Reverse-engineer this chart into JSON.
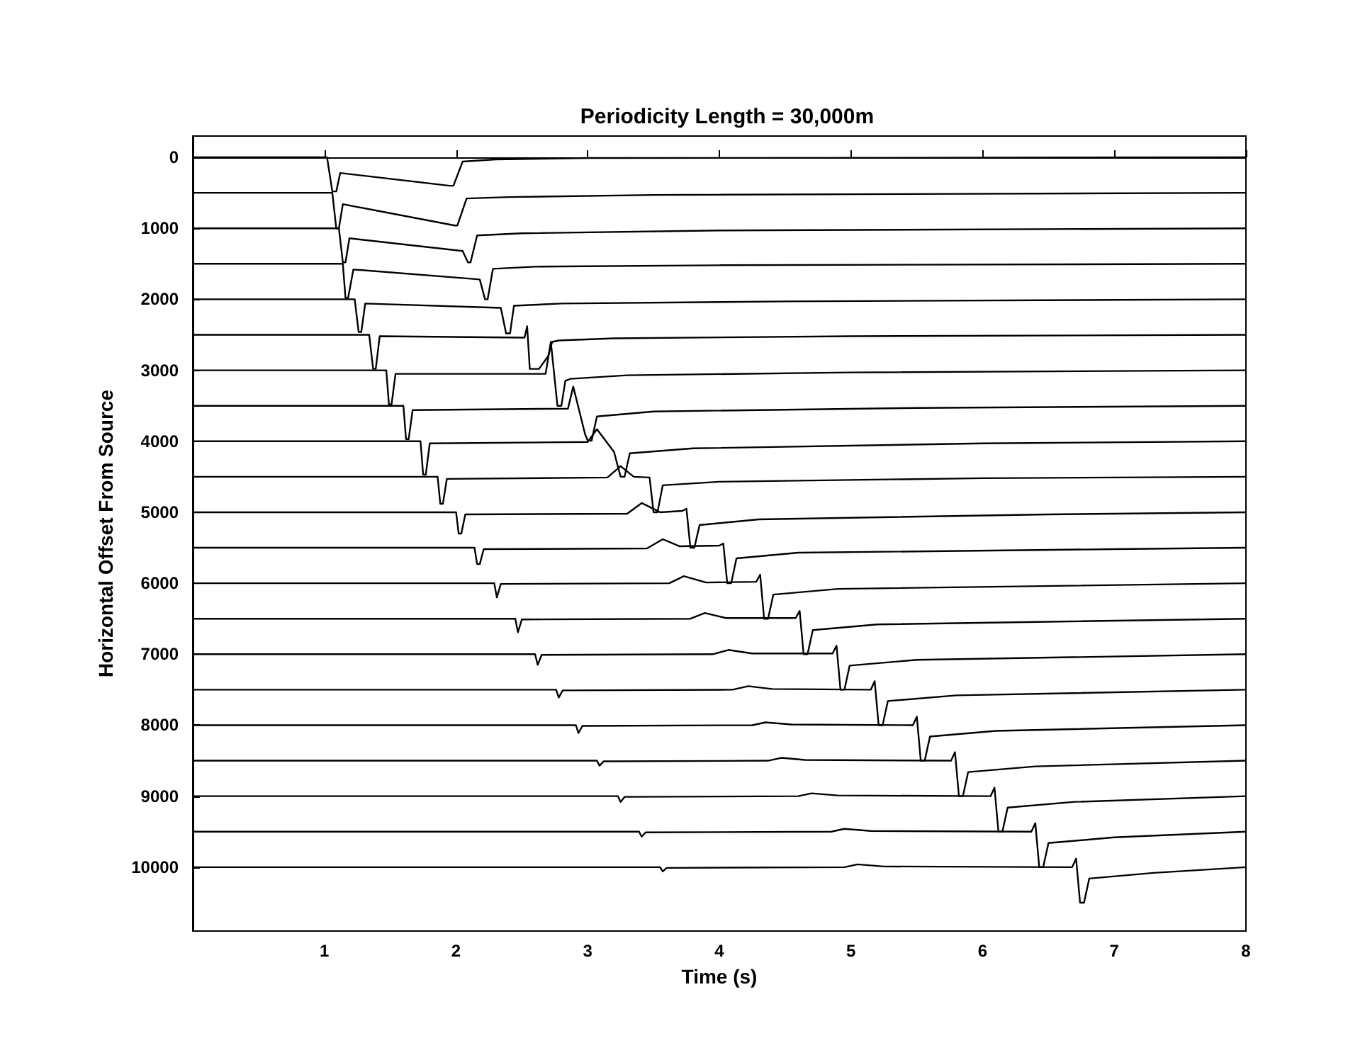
{
  "chart_data": {
    "type": "line",
    "title": "Periodicity Length = 30,000m",
    "xlabel": "Time (s)",
    "ylabel": "Horizontal Offset From Source",
    "xlim": [
      0,
      8
    ],
    "xticks": [
      1,
      2,
      3,
      4,
      5,
      6,
      7,
      8
    ],
    "ylim": [
      10900,
      -300
    ],
    "yticks": [
      0,
      1000,
      2000,
      3000,
      4000,
      5000,
      6000,
      7000,
      8000,
      9000,
      10000
    ],
    "series": [
      {
        "color": "#000000",
        "x": [
          0,
          1.02,
          1.06,
          1.09,
          1.12,
          1.95,
          1.98,
          2.05,
          2.3,
          3,
          8
        ],
        "values": [
          0,
          0,
          480,
          480,
          220,
          400,
          400,
          60,
          30,
          10,
          0
        ]
      },
      {
        "color": "#000000",
        "x": [
          0,
          1.06,
          1.09,
          1.11,
          1.14,
          1.99,
          2.01,
          2.08,
          2.4,
          3.5,
          8
        ],
        "values": [
          500,
          500,
          1000,
          1000,
          660,
          960,
          960,
          580,
          560,
          530,
          500
        ]
      },
      {
        "color": "#000000",
        "x": [
          0,
          1.11,
          1.14,
          1.16,
          1.19,
          2.05,
          2.09,
          2.11,
          2.16,
          2.5,
          4,
          8
        ],
        "values": [
          1000,
          1000,
          1480,
          1480,
          1140,
          1320,
          1480,
          1480,
          1100,
          1070,
          1030,
          1000
        ]
      },
      {
        "color": "#000000",
        "x": [
          0,
          1.14,
          1.16,
          1.18,
          1.22,
          2.18,
          2.22,
          2.24,
          2.28,
          2.6,
          4,
          8
        ],
        "values": [
          1500,
          1500,
          1980,
          1980,
          1580,
          1720,
          2000,
          2000,
          1570,
          1540,
          1520,
          1500
        ]
      },
      {
        "color": "#000000",
        "x": [
          0,
          1.23,
          1.26,
          1.28,
          1.31,
          2.34,
          2.38,
          2.41,
          2.44,
          2.8,
          4.5,
          8
        ],
        "values": [
          2000,
          2000,
          2460,
          2460,
          2060,
          2120,
          2480,
          2480,
          2090,
          2060,
          2030,
          2000
        ]
      },
      {
        "color": "#000000",
        "x": [
          0,
          1.34,
          1.37,
          1.39,
          1.42,
          2.52,
          2.54,
          2.56,
          2.63,
          2.7,
          2.73,
          2.78,
          3.2,
          5,
          8
        ],
        "values": [
          2500,
          2500,
          2980,
          2980,
          2520,
          2540,
          2380,
          2980,
          2980,
          2800,
          2600,
          2580,
          2550,
          2520,
          2500
        ]
      },
      {
        "color": "#000000",
        "x": [
          0,
          1.47,
          1.49,
          1.51,
          1.54,
          2.68,
          2.72,
          2.77,
          2.8,
          2.83,
          2.87,
          3.3,
          5,
          8
        ],
        "values": [
          3000,
          3000,
          3480,
          3480,
          3050,
          3050,
          2600,
          3500,
          3500,
          3150,
          3120,
          3070,
          3030,
          3000
        ]
      },
      {
        "color": "#000000",
        "x": [
          0,
          1.6,
          1.62,
          1.64,
          1.67,
          2.85,
          2.89,
          2.98,
          3,
          3.03,
          3.07,
          3.5,
          5.5,
          8
        ],
        "values": [
          3500,
          3500,
          3970,
          3970,
          3560,
          3540,
          3230,
          3900,
          3990,
          3990,
          3650,
          3580,
          3530,
          3500
        ]
      },
      {
        "color": "#000000",
        "x": [
          0,
          1.73,
          1.75,
          1.77,
          1.8,
          3,
          3.07,
          3.2,
          3.25,
          3.28,
          3.32,
          3.8,
          6,
          8
        ],
        "values": [
          4000,
          4000,
          4470,
          4470,
          4030,
          4010,
          3830,
          4150,
          4500,
          4500,
          4170,
          4100,
          4030,
          4000
        ]
      },
      {
        "color": "#000000",
        "x": [
          0,
          1.86,
          1.88,
          1.9,
          1.93,
          3.15,
          3.25,
          3.35,
          3.47,
          3.5,
          3.53,
          3.57,
          4,
          6,
          8
        ],
        "values": [
          4500,
          4500,
          4880,
          4880,
          4530,
          4510,
          4350,
          4500,
          4510,
          5000,
          5000,
          4620,
          4570,
          4520,
          4500
        ]
      },
      {
        "color": "#000000",
        "x": [
          0,
          2,
          2.02,
          2.04,
          2.07,
          3.3,
          3.41,
          3.55,
          3.72,
          3.75,
          3.78,
          3.81,
          3.85,
          4.3,
          6.5,
          8
        ],
        "values": [
          5000,
          5000,
          5300,
          5300,
          5030,
          5020,
          4870,
          5000,
          4980,
          4950,
          5500,
          5500,
          5180,
          5100,
          5030,
          5000
        ]
      },
      {
        "color": "#000000",
        "x": [
          0,
          2.14,
          2.16,
          2.18,
          2.21,
          3.45,
          3.57,
          3.7,
          4,
          4.03,
          4.06,
          4.09,
          4.13,
          4.6,
          7,
          8
        ],
        "values": [
          5500,
          5500,
          5730,
          5730,
          5520,
          5510,
          5380,
          5480,
          5470,
          5440,
          6000,
          6000,
          5650,
          5570,
          5520,
          5500
        ]
      },
      {
        "color": "#000000",
        "x": [
          0,
          2.29,
          2.31,
          2.34,
          3.62,
          3.73,
          3.9,
          4.28,
          4.31,
          4.34,
          4.37,
          4.41,
          4.9,
          8
        ],
        "values": [
          6000,
          6000,
          6200,
          6010,
          6000,
          5900,
          5990,
          5980,
          5880,
          6500,
          6500,
          6160,
          6080,
          6000
        ]
      },
      {
        "color": "#000000",
        "x": [
          0,
          2.45,
          2.47,
          2.5,
          3.78,
          3.89,
          4.05,
          4.58,
          4.61,
          4.64,
          4.67,
          4.71,
          5.2,
          8
        ],
        "values": [
          6500,
          6500,
          6690,
          6510,
          6500,
          6420,
          6490,
          6490,
          6390,
          7000,
          7000,
          6660,
          6580,
          6500
        ]
      },
      {
        "color": "#000000",
        "x": [
          0,
          2.6,
          2.62,
          2.65,
          3.95,
          4.07,
          4.25,
          4.86,
          4.89,
          4.92,
          4.95,
          4.99,
          5.5,
          8
        ],
        "values": [
          7000,
          7000,
          7150,
          7010,
          7000,
          6940,
          6990,
          6990,
          6880,
          7500,
          7500,
          7160,
          7080,
          7000
        ]
      },
      {
        "color": "#000000",
        "x": [
          0,
          2.76,
          2.78,
          2.81,
          4.1,
          4.22,
          4.4,
          5.15,
          5.18,
          5.21,
          5.24,
          5.28,
          5.8,
          8
        ],
        "values": [
          7500,
          7500,
          7610,
          7510,
          7500,
          7450,
          7490,
          7500,
          7380,
          8000,
          8000,
          7660,
          7580,
          7500
        ]
      },
      {
        "color": "#000000",
        "x": [
          0,
          2.91,
          2.93,
          2.96,
          4.25,
          4.35,
          4.55,
          5.47,
          5.5,
          5.53,
          5.56,
          5.6,
          6.1,
          8
        ],
        "values": [
          8000,
          8000,
          8110,
          8010,
          8000,
          7960,
          7990,
          8000,
          7880,
          8500,
          8500,
          8160,
          8080,
          8000
        ]
      },
      {
        "color": "#000000",
        "x": [
          0,
          3.07,
          3.09,
          3.12,
          4.37,
          4.47,
          4.65,
          5.76,
          5.79,
          5.82,
          5.85,
          5.89,
          6.4,
          8
        ],
        "values": [
          8500,
          8500,
          8570,
          8510,
          8500,
          8460,
          8490,
          8500,
          8380,
          9000,
          9000,
          8660,
          8580,
          8500
        ]
      },
      {
        "color": "#000000",
        "x": [
          0,
          3.23,
          3.25,
          3.28,
          4.6,
          4.7,
          4.9,
          6.06,
          6.09,
          6.12,
          6.15,
          6.19,
          6.7,
          8
        ],
        "values": [
          9000,
          9000,
          9080,
          9010,
          9000,
          8960,
          8990,
          9000,
          8880,
          9500,
          9500,
          9160,
          9080,
          9000
        ]
      },
      {
        "color": "#000000",
        "x": [
          0,
          3.39,
          3.41,
          3.44,
          4.85,
          4.95,
          5.15,
          6.37,
          6.4,
          6.43,
          6.46,
          6.5,
          7,
          8
        ],
        "values": [
          9500,
          9500,
          9570,
          9510,
          9500,
          9460,
          9490,
          9500,
          9380,
          10000,
          10000,
          9660,
          9580,
          9500
        ]
      },
      {
        "color": "#000000",
        "x": [
          0,
          3.55,
          3.57,
          3.6,
          4.95,
          5.05,
          5.25,
          6.68,
          6.71,
          6.74,
          6.77,
          6.81,
          7.3,
          8
        ],
        "values": [
          10000,
          10000,
          10060,
          10010,
          10000,
          9960,
          9990,
          10000,
          9880,
          10500,
          10500,
          10160,
          10080,
          10000
        ]
      }
    ]
  }
}
